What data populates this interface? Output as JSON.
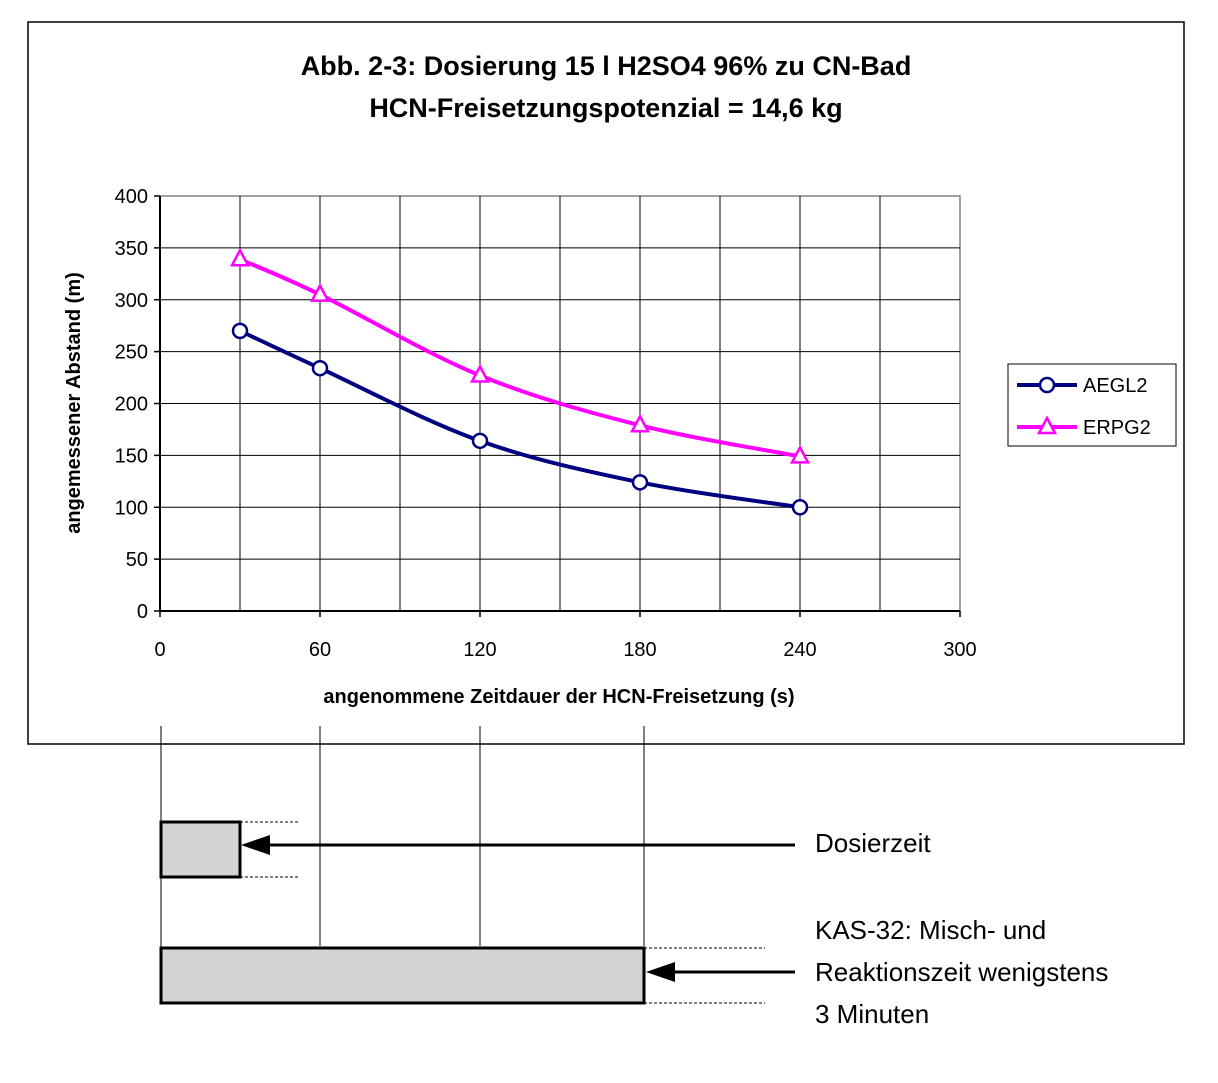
{
  "chart_data": {
    "type": "line",
    "title": "Abb. 2-3: Dosierung 15 l H2SO4 96% zu CN-Bad",
    "subtitle": "HCN-Freisetzungspotenzial = 14,6 kg",
    "xlabel": "angenommene Zeitdauer der HCN-Freisetzung (s)",
    "ylabel": "angemessener Abstand (m)",
    "xlim": [
      0,
      300
    ],
    "ylim": [
      0,
      400
    ],
    "x_ticks": [
      "0",
      "60",
      "120",
      "180",
      "240",
      "300"
    ],
    "y_ticks": [
      "0",
      "50",
      "100",
      "150",
      "200",
      "250",
      "300",
      "350",
      "400"
    ],
    "grid": true,
    "legend_position": "right",
    "series": [
      {
        "name": "AEGL2",
        "color": "#000080",
        "marker": "circle",
        "x": [
          30,
          60,
          120,
          180,
          240
        ],
        "y": [
          270,
          234,
          164,
          124,
          100
        ]
      },
      {
        "name": "ERPG2",
        "color": "#ff00ff",
        "marker": "triangle",
        "x": [
          30,
          60,
          120,
          180,
          240
        ],
        "y": [
          339,
          305,
          227,
          179,
          149
        ]
      }
    ]
  },
  "annotations": {
    "dosing_label": "Dosierzeit",
    "reaction_line1": "KAS-32: Misch- und",
    "reaction_line2": "Reaktionszeit wenigstens",
    "reaction_line3": "3 Minuten",
    "dosing_bar_color": "#d3d3d3",
    "reaction_bar_color": "#d3d3d3"
  }
}
